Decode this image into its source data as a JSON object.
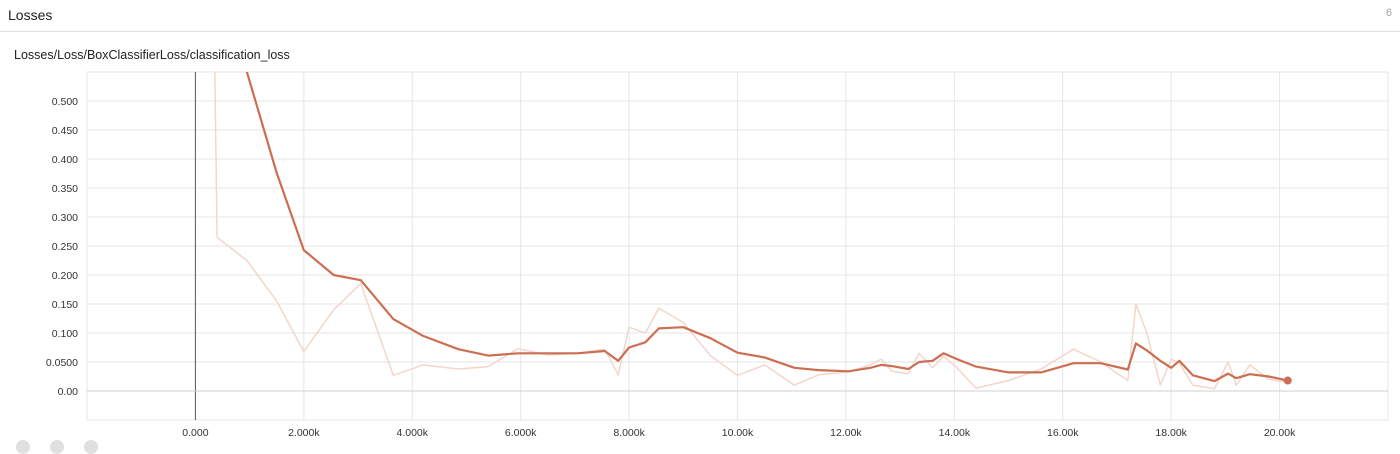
{
  "header": {
    "title": "Losses",
    "count": "6"
  },
  "card": {
    "title": "Losses/Loss/BoxClassifierLoss/classification_loss"
  },
  "toolbar": {
    "buttons": [
      "expand-icon",
      "lines-icon",
      "fit-domain-icon"
    ]
  },
  "colors": {
    "smoothed": "#cc6e52",
    "raw": "#f2d6cc",
    "grid": "#e6e6e6",
    "axis": "#5a5a5a"
  },
  "chart_data": {
    "type": "line",
    "title": "",
    "xlabel": "",
    "ylabel": "",
    "xlim": [
      -2000,
      22000
    ],
    "ylim": [
      -0.05,
      0.55
    ],
    "grid": true,
    "x_ticks": [
      0,
      2000,
      4000,
      6000,
      8000,
      10000,
      12000,
      14000,
      16000,
      18000,
      20000
    ],
    "x_tick_labels": [
      "0.000",
      "2.000k",
      "4.000k",
      "6.000k",
      "8.000k",
      "10.00k",
      "12.00k",
      "14.00k",
      "16.00k",
      "18.00k",
      "20.00k"
    ],
    "y_ticks": [
      0.0,
      0.05,
      0.1,
      0.15,
      0.2,
      0.25,
      0.3,
      0.35,
      0.4,
      0.45,
      0.5
    ],
    "y_tick_labels": [
      "0.00",
      "0.0500",
      "0.100",
      "0.150",
      "0.200",
      "0.250",
      "0.300",
      "0.350",
      "0.400",
      "0.450",
      "0.500"
    ],
    "series": [
      {
        "role": "raw",
        "x": [
          330,
          400,
          950,
          1500,
          2000,
          2550,
          3050,
          3650,
          4200,
          4850,
          5400,
          5950,
          6500,
          7050,
          7550,
          7800,
          8000,
          8300,
          8550,
          9000,
          9500,
          10000,
          10500,
          11050,
          11500,
          12050,
          12450,
          12650,
          12850,
          13150,
          13350,
          13600,
          13800,
          14050,
          14400,
          15000,
          15600,
          16200,
          16700,
          17200,
          17350,
          17550,
          17800,
          18000,
          18150,
          18400,
          18800,
          19050,
          19200,
          19450,
          19800,
          20150
        ],
        "y": [
          0.74,
          0.265,
          0.225,
          0.155,
          0.068,
          0.14,
          0.185,
          0.027,
          0.045,
          0.038,
          0.042,
          0.073,
          0.062,
          0.065,
          0.072,
          0.028,
          0.11,
          0.1,
          0.143,
          0.118,
          0.061,
          0.027,
          0.045,
          0.01,
          0.028,
          0.033,
          0.045,
          0.055,
          0.034,
          0.03,
          0.065,
          0.04,
          0.06,
          0.04,
          0.005,
          0.018,
          0.038,
          0.072,
          0.05,
          0.018,
          0.15,
          0.1,
          0.01,
          0.055,
          0.048,
          0.01,
          0.004,
          0.05,
          0.01,
          0.045,
          0.02,
          0.015
        ]
      },
      {
        "role": "smoothed",
        "x": [
          950,
          1500,
          2000,
          2550,
          3050,
          3650,
          4200,
          4850,
          5400,
          5950,
          6500,
          7050,
          7550,
          7800,
          8000,
          8300,
          8550,
          9000,
          9500,
          10000,
          10500,
          11050,
          11500,
          12050,
          12450,
          12650,
          12850,
          13150,
          13350,
          13600,
          13800,
          14050,
          14400,
          15000,
          15600,
          16200,
          16700,
          17200,
          17350,
          17550,
          17800,
          18000,
          18150,
          18400,
          18800,
          19050,
          19200,
          19450,
          19800,
          20150
        ],
        "y": [
          0.55,
          0.376,
          0.243,
          0.2,
          0.191,
          0.124,
          0.095,
          0.072,
          0.061,
          0.065,
          0.065,
          0.065,
          0.069,
          0.052,
          0.075,
          0.084,
          0.108,
          0.11,
          0.091,
          0.066,
          0.058,
          0.04,
          0.036,
          0.034,
          0.04,
          0.045,
          0.043,
          0.038,
          0.05,
          0.052,
          0.065,
          0.055,
          0.042,
          0.032,
          0.032,
          0.048,
          0.048,
          0.037,
          0.082,
          0.07,
          0.052,
          0.04,
          0.052,
          0.027,
          0.017,
          0.03,
          0.022,
          0.029,
          0.025,
          0.018
        ]
      }
    ]
  }
}
